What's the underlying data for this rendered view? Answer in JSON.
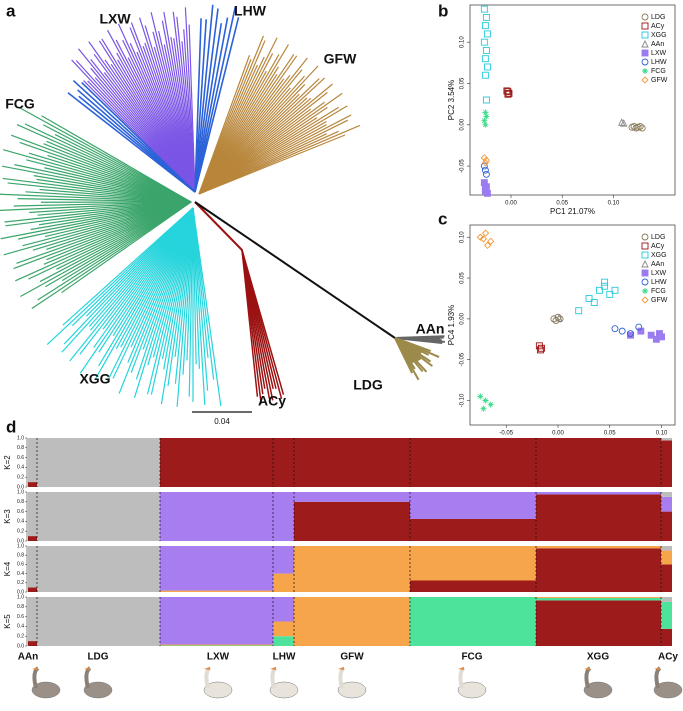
{
  "panels": [
    "a",
    "b",
    "c",
    "d"
  ],
  "tree": {
    "clades": [
      {
        "label": "LXW",
        "color": "#7b55e6"
      },
      {
        "label": "LHW",
        "color": "#2c62d8"
      },
      {
        "label": "GFW",
        "color": "#b8863b"
      },
      {
        "label": "FCG",
        "color": "#3ba56b"
      },
      {
        "label": "XGG",
        "color": "#26d4dc"
      },
      {
        "label": "ACy",
        "color": "#9b1111"
      },
      {
        "label": "AAn",
        "color": "#666666"
      },
      {
        "label": "LDG",
        "color": "#9c8a4a"
      }
    ],
    "scale_label": "0.04"
  },
  "chart_data": [
    {
      "type": "scatter",
      "xlabel": "PC1 21.07%",
      "ylabel": "PC2 3.54%",
      "xlim": [
        -0.04,
        0.16
      ],
      "ylim": [
        -0.085,
        0.145
      ],
      "xticks": [
        {
          "value": 0,
          "label": "0.00"
        },
        {
          "value": 0.05,
          "label": "0.05"
        },
        {
          "value": 0.1,
          "label": "0.10"
        }
      ],
      "yticks": [
        {
          "value": -0.05,
          "label": "-0.05"
        },
        {
          "value": 0,
          "label": "0.00"
        },
        {
          "value": 0.05,
          "label": "0.05"
        },
        {
          "value": 0.1,
          "label": "0.10"
        }
      ],
      "legend": "upper right",
      "series": [
        {
          "name": "LDG",
          "color": "#8a7a5a",
          "marker": "circle",
          "x": [
            0.118,
            0.12,
            0.122,
            0.124,
            0.126,
            0.128
          ],
          "y": [
            -0.003,
            -0.002,
            -0.004,
            -0.003,
            -0.002,
            -0.004
          ]
        },
        {
          "name": "ACy",
          "color": "#9b1111",
          "marker": "xsquare",
          "x": [
            -0.003,
            -0.002,
            -0.004,
            -0.003
          ],
          "y": [
            0.04,
            0.038,
            0.041,
            0.037
          ]
        },
        {
          "name": "XGG",
          "color": "#26c9dc",
          "marker": "square",
          "x": [
            -0.026,
            -0.024,
            -0.025,
            -0.023,
            -0.026,
            -0.024,
            -0.025,
            -0.023,
            -0.025,
            -0.024
          ],
          "y": [
            0.14,
            0.13,
            0.12,
            0.11,
            0.1,
            0.09,
            0.08,
            0.07,
            0.06,
            0.03
          ]
        },
        {
          "name": "AAn",
          "color": "#888888",
          "marker": "triangle",
          "x": [
            0.108,
            0.11
          ],
          "y": [
            0.003,
            0.002
          ]
        },
        {
          "name": "LXW",
          "color": "#9b7cf0",
          "marker": "fsquare",
          "x": [
            -0.026,
            -0.024,
            -0.025,
            -0.023,
            -0.025
          ],
          "y": [
            -0.07,
            -0.075,
            -0.08,
            -0.083,
            -0.078
          ]
        },
        {
          "name": "LHW",
          "color": "#3060d8",
          "marker": "circle",
          "x": [
            -0.025,
            -0.024,
            -0.026
          ],
          "y": [
            -0.055,
            -0.06,
            -0.05
          ]
        },
        {
          "name": "FCG",
          "color": "#3ddc8a",
          "marker": "star",
          "x": [
            -0.025,
            -0.024,
            -0.026,
            -0.025
          ],
          "y": [
            0.015,
            0.01,
            0.005,
            0.0
          ]
        },
        {
          "name": "GFW",
          "color": "#f39a3a",
          "marker": "diamond",
          "x": [
            -0.026,
            -0.024,
            -0.025
          ],
          "y": [
            -0.04,
            -0.043,
            -0.046
          ]
        }
      ]
    },
    {
      "type": "scatter",
      "xlabel": "PC3 2.32%",
      "ylabel": "PC4 1.93%",
      "xlim": [
        -0.085,
        0.113
      ],
      "ylim": [
        -0.13,
        0.115
      ],
      "xticks": [
        {
          "value": -0.05,
          "label": "-0.05"
        },
        {
          "value": 0,
          "label": "0.00"
        },
        {
          "value": 0.05,
          "label": "0.05"
        },
        {
          "value": 0.1,
          "label": "0.10"
        }
      ],
      "yticks": [
        {
          "value": -0.1,
          "label": "-0.10"
        },
        {
          "value": -0.05,
          "label": "-0.05"
        },
        {
          "value": 0,
          "label": "0.00"
        },
        {
          "value": 0.05,
          "label": "0.05"
        },
        {
          "value": 0.1,
          "label": "0.10"
        }
      ],
      "legend": "upper right",
      "series": [
        {
          "name": "LDG",
          "color": "#8a7a5a",
          "marker": "circle",
          "x": [
            -0.004,
            -0.002,
            0,
            0.002
          ],
          "y": [
            0,
            -0.002,
            0.002,
            0
          ]
        },
        {
          "name": "ACy",
          "color": "#9b1111",
          "marker": "xsquare",
          "x": [
            -0.018,
            -0.016,
            -0.017
          ],
          "y": [
            -0.033,
            -0.036,
            -0.038
          ]
        },
        {
          "name": "XGG",
          "color": "#26c9dc",
          "marker": "square",
          "x": [
            0.02,
            0.03,
            0.04,
            0.045,
            0.05,
            0.055,
            0.035,
            0.045
          ],
          "y": [
            0.01,
            0.025,
            0.035,
            0.04,
            0.03,
            0.035,
            0.02,
            0.045
          ]
        },
        {
          "name": "AAn",
          "color": "#888888",
          "marker": "triangle",
          "x": [
            0.001
          ],
          "y": [
            0.001
          ]
        },
        {
          "name": "LXW",
          "color": "#9b7cf0",
          "marker": "fsquare",
          "x": [
            0.07,
            0.08,
            0.09,
            0.095,
            0.1,
            0.098
          ],
          "y": [
            -0.02,
            -0.015,
            -0.02,
            -0.025,
            -0.022,
            -0.018
          ]
        },
        {
          "name": "LHW",
          "color": "#3060d8",
          "marker": "circle",
          "x": [
            0.055,
            0.062,
            0.07,
            0.078
          ],
          "y": [
            -0.012,
            -0.015,
            -0.018,
            -0.01
          ]
        },
        {
          "name": "FCG",
          "color": "#3ddc8a",
          "marker": "star",
          "x": [
            -0.075,
            -0.07,
            -0.065,
            -0.072
          ],
          "y": [
            -0.095,
            -0.1,
            -0.105,
            -0.11
          ]
        },
        {
          "name": "GFW",
          "color": "#f39a3a",
          "marker": "diamond",
          "x": [
            -0.075,
            -0.07,
            -0.065,
            -0.068,
            -0.072
          ],
          "y": [
            0.1,
            0.105,
            0.095,
            0.09,
            0.098
          ]
        }
      ]
    },
    {
      "type": "admixture",
      "categories": [
        "AAn",
        "LDG",
        "LXW",
        "LHW",
        "GFW",
        "FCG",
        "XGG",
        "ACy"
      ],
      "ylim": [
        0,
        1
      ],
      "yticks": [
        {
          "value": 0,
          "label": "0.0"
        },
        {
          "value": 0.2,
          "label": "0.2"
        },
        {
          "value": 0.4,
          "label": "0.4"
        },
        {
          "value": 0.6,
          "label": "0.6"
        },
        {
          "value": 0.8,
          "label": "0.8"
        },
        {
          "value": 1,
          "label": "1.0"
        }
      ],
      "panels": [
        {
          "label": "K=2",
          "series": [
            {
              "color": "#9e1b1b",
              "values": [
                0.1,
                0,
                1,
                1,
                1,
                1,
                1,
                0.95
              ]
            },
            {
              "color": "#bdbdbd",
              "values": [
                0.9,
                1,
                0,
                0,
                0,
                0,
                0,
                0.05
              ]
            }
          ]
        },
        {
          "label": "K=3",
          "series": [
            {
              "color": "#9e1b1b",
              "values": [
                0.1,
                0,
                0,
                0,
                0.8,
                0.45,
                0.95,
                0.6
              ]
            },
            {
              "color": "#a77df0",
              "values": [
                0,
                0,
                1,
                1,
                0.2,
                0.55,
                0.05,
                0.3
              ]
            },
            {
              "color": "#bdbdbd",
              "values": [
                0.9,
                1,
                0,
                0,
                0,
                0,
                0,
                0.1
              ]
            }
          ]
        },
        {
          "label": "K=4",
          "series": [
            {
              "color": "#9e1b1b",
              "values": [
                0.1,
                0,
                0,
                0,
                0,
                0.25,
                0.95,
                0.6
              ]
            },
            {
              "color": "#f7a54a",
              "values": [
                0,
                0,
                0.03,
                0.4,
                1,
                0.75,
                0.05,
                0.3
              ]
            },
            {
              "color": "#a77df0",
              "values": [
                0,
                0,
                0.97,
                0.6,
                0,
                0,
                0,
                0
              ]
            },
            {
              "color": "#bdbdbd",
              "values": [
                0.9,
                1,
                0,
                0,
                0,
                0,
                0,
                0.1
              ]
            }
          ]
        },
        {
          "label": "K=5",
          "series": [
            {
              "color": "#9e1b1b",
              "values": [
                0.1,
                0,
                0,
                0,
                0,
                0,
                0.93,
                0.35
              ]
            },
            {
              "color": "#4ee39a",
              "values": [
                0,
                0,
                0.01,
                0.2,
                0,
                1,
                0.05,
                0.55
              ]
            },
            {
              "color": "#f7a54a",
              "values": [
                0,
                0,
                0.02,
                0.3,
                1,
                0,
                0.02,
                0
              ]
            },
            {
              "color": "#a77df0",
              "values": [
                0,
                0,
                0.97,
                0.5,
                0,
                0,
                0,
                0
              ]
            },
            {
              "color": "#bdbdbd",
              "values": [
                0.9,
                1,
                0,
                0,
                0,
                0,
                0,
                0.1
              ]
            }
          ]
        }
      ]
    }
  ]
}
